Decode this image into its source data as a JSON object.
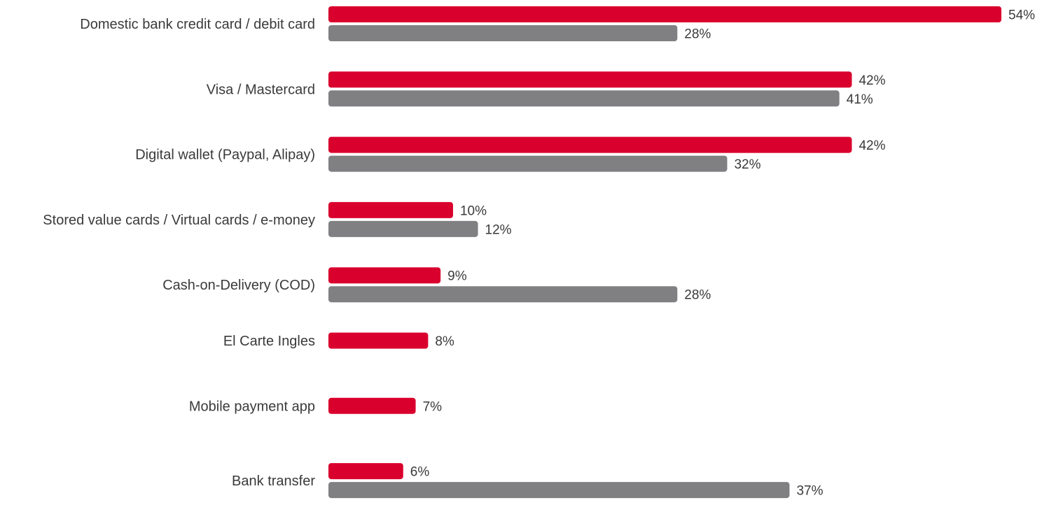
{
  "chart_data": {
    "type": "bar",
    "orientation": "horizontal",
    "categories": [
      "Domestic bank credit card / debit card",
      "Visa / Mastercard",
      "Digital wallet (Paypal, Alipay)",
      "Stored value cards / Virtual cards / e-money",
      "Cash-on-Delivery (COD)",
      "El Carte Ingles",
      "Mobile payment app",
      "Bank transfer"
    ],
    "series": [
      {
        "color": "#d9002d",
        "values": [
          54,
          42,
          42,
          10,
          9,
          8,
          7,
          6
        ],
        "labels": [
          "54%",
          "42%",
          "42%",
          "10%",
          "9%",
          "8%",
          "7%",
          "6%"
        ]
      },
      {
        "color": "#808083",
        "values": [
          28,
          41,
          32,
          12,
          28,
          null,
          null,
          37
        ],
        "labels": [
          "28%",
          "41%",
          "32%",
          "12%",
          "28%",
          null,
          null,
          "37%"
        ]
      }
    ],
    "xlim": [
      0,
      54
    ],
    "grid": false,
    "legend": "none",
    "title": "",
    "xlabel": "",
    "ylabel": ""
  }
}
